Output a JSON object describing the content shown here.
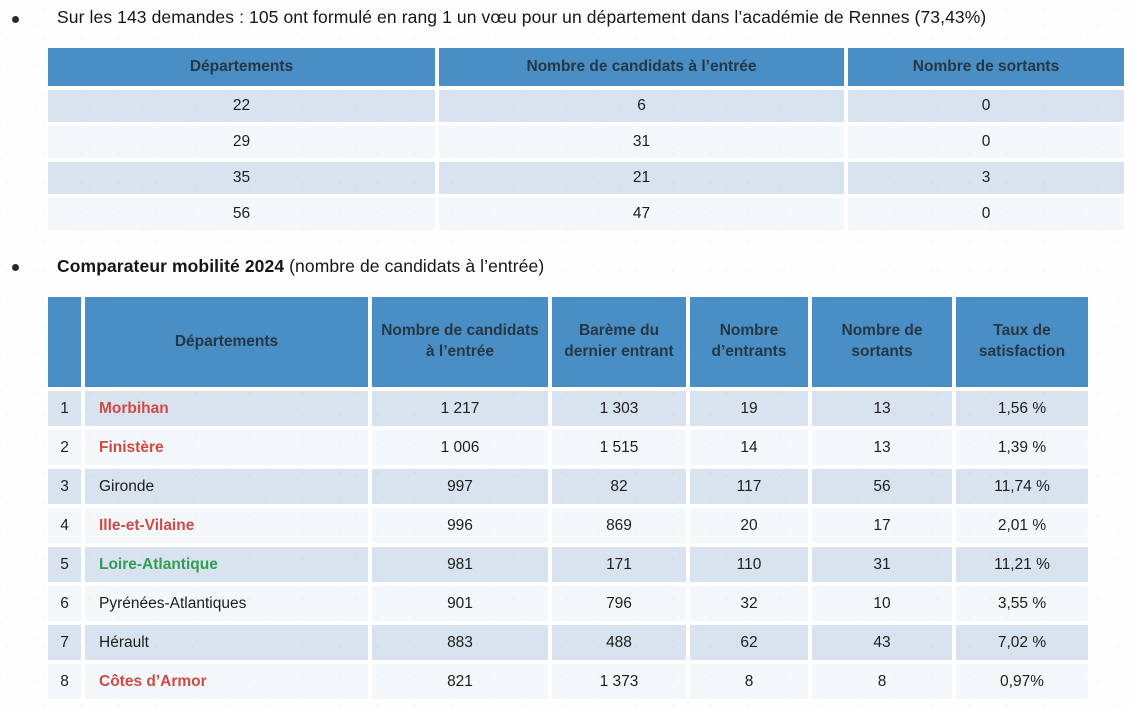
{
  "colors": {
    "header_bg": "#4a8ec6",
    "header_text": "#263744",
    "row_odd_bg": "#d9e2ef",
    "row_even_bg": "#f5f8fb",
    "dept_red": "#cf4a44",
    "dept_green": "#2f9e52"
  },
  "intro": {
    "text": "Sur les 143 demandes : 105 ont formulé en rang 1 un vœu pour un département dans l’académie de Rennes (73,43%)"
  },
  "table1": {
    "headers": [
      "Départements",
      "Nombre de  candidats à l’entrée",
      "Nombre de sortants"
    ],
    "rows": [
      [
        "22",
        "6",
        "0"
      ],
      [
        "29",
        "31",
        "0"
      ],
      [
        "35",
        "21",
        "3"
      ],
      [
        "56",
        "47",
        "0"
      ]
    ]
  },
  "section2": {
    "title_bold": "Comparateur mobilité 2024",
    "title_rest": " (nombre de candidats à l’entrée)"
  },
  "table2": {
    "headers": {
      "rank": "",
      "departements": "Départements",
      "candidats": "Nombre de candidats à l’entrée",
      "bareme": "Barème du dernier entrant",
      "entrants": "Nombre d’entrants",
      "sortants": "Nombre de sortants",
      "taux": "Taux de satisfaction"
    },
    "rows": [
      {
        "rank": "1",
        "dept": "Morbihan",
        "style": "red",
        "candidats": "1 217",
        "bareme": "1 303",
        "entrants": "19",
        "sortants": "13",
        "taux": "1,56 %"
      },
      {
        "rank": "2",
        "dept": "Finistère",
        "style": "red",
        "candidats": "1 006",
        "bareme": "1 515",
        "entrants": "14",
        "sortants": "13",
        "taux": "1,39 %"
      },
      {
        "rank": "3",
        "dept": "Gironde",
        "style": "normal",
        "candidats": "997",
        "bareme": "82",
        "entrants": "117",
        "sortants": "56",
        "taux": "11,74 %"
      },
      {
        "rank": "4",
        "dept": "Ille-et-Vilaine",
        "style": "red",
        "candidats": "996",
        "bareme": "869",
        "entrants": "20",
        "sortants": "17",
        "taux": "2,01 %"
      },
      {
        "rank": "5",
        "dept": "Loire-Atlantique",
        "style": "green",
        "candidats": "981",
        "bareme": "171",
        "entrants": "110",
        "sortants": "31",
        "taux": "11,21 %"
      },
      {
        "rank": "6",
        "dept": "Pyrénées-Atlantiques",
        "style": "normal",
        "candidats": "901",
        "bareme": "796",
        "entrants": "32",
        "sortants": "10",
        "taux": "3,55 %"
      },
      {
        "rank": "7",
        "dept": "Hérault",
        "style": "normal",
        "candidats": "883",
        "bareme": "488",
        "entrants": "62",
        "sortants": "43",
        "taux": "7,02 %"
      },
      {
        "rank": "8",
        "dept": "Côtes d’Armor",
        "style": "red",
        "candidats": "821",
        "bareme": "1 373",
        "entrants": "8",
        "sortants": "8",
        "taux": "0,97%"
      }
    ]
  }
}
